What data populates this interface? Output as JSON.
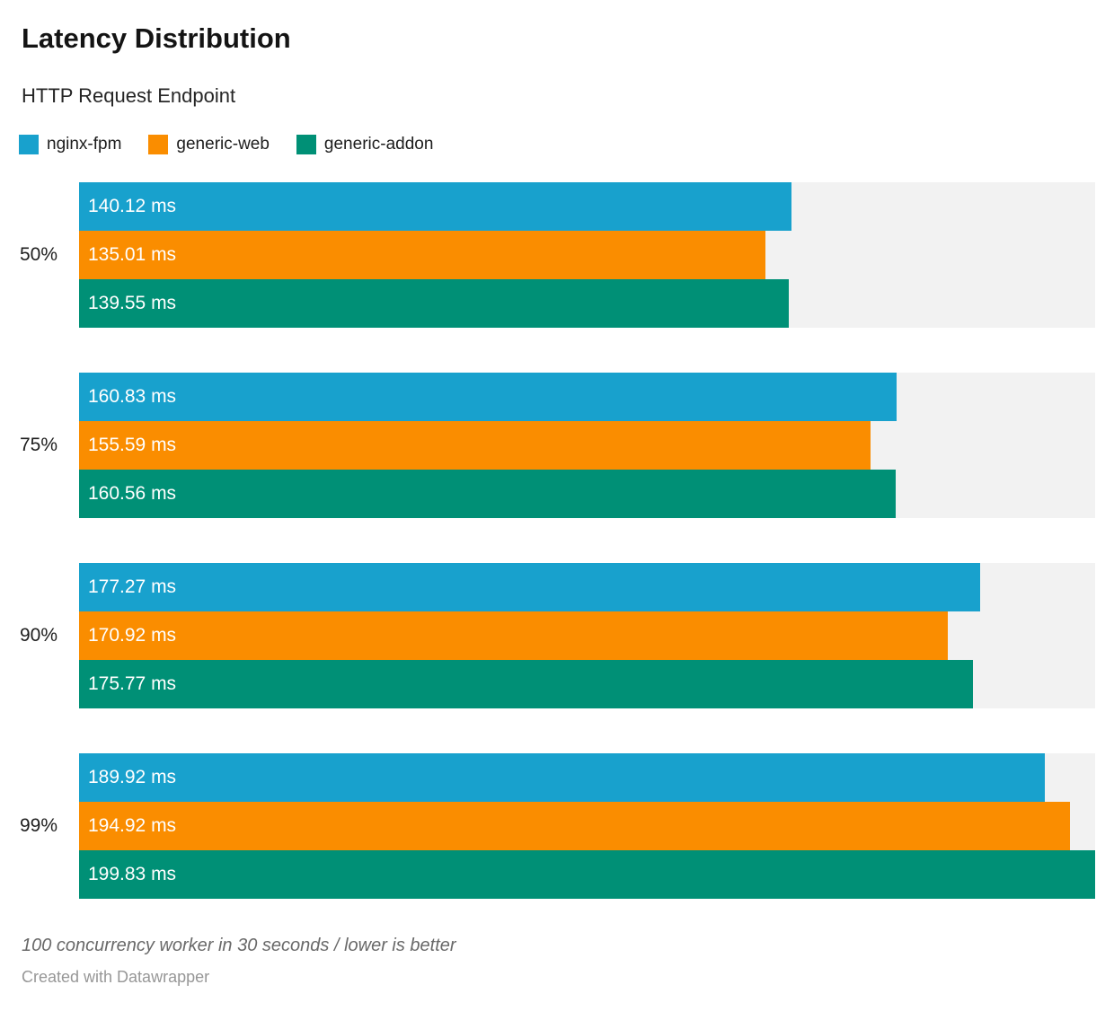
{
  "header": {
    "title": "Latency Distribution",
    "subtitle": "HTTP Request Endpoint"
  },
  "legend": {
    "items": [
      {
        "label": "nginx-fpm",
        "color": "#18a1cd"
      },
      {
        "label": "generic-web",
        "color": "#fa8d00"
      },
      {
        "label": "generic-addon",
        "color": "#009076"
      }
    ]
  },
  "chart_data": {
    "type": "bar",
    "orientation": "horizontal",
    "title": "Latency Distribution",
    "subtitle": "HTTP Request Endpoint",
    "categories": [
      "50%",
      "75%",
      "90%",
      "99%"
    ],
    "series": [
      {
        "name": "nginx-fpm",
        "color": "#18a1cd",
        "values": [
          140.12,
          160.83,
          177.27,
          189.92
        ]
      },
      {
        "name": "generic-web",
        "color": "#fa8d00",
        "values": [
          135.01,
          155.59,
          170.92,
          194.92
        ]
      },
      {
        "name": "generic-addon",
        "color": "#009076",
        "values": [
          139.55,
          160.56,
          175.77,
          199.83
        ]
      }
    ],
    "value_suffix": " ms",
    "value_decimals": 2,
    "xlim": [
      0,
      199.83
    ],
    "bar_labels": true,
    "grid": false,
    "legend_position": "top",
    "track_color": "#f2f2f2",
    "bar_label_color": "#ffffff"
  },
  "footer": {
    "note": "100 concurrency worker in 30 seconds / lower is better",
    "attribution": "Created with Datawrapper"
  }
}
